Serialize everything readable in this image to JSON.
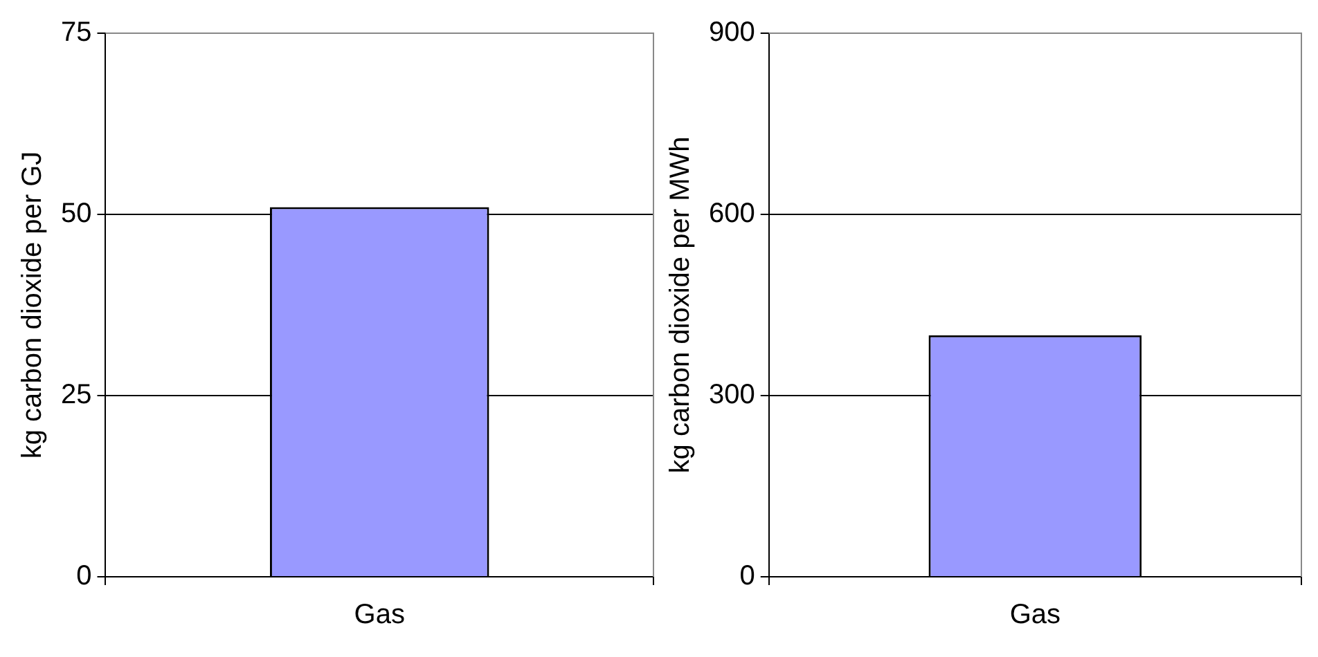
{
  "chart_data": [
    {
      "type": "bar",
      "categories": [
        "Gas"
      ],
      "values": [
        51
      ],
      "color": "#9999ff",
      "ylabel": "kg carbon dioxide per GJ",
      "ylim": [
        0,
        75
      ],
      "yticks": [
        0,
        25,
        50,
        75
      ],
      "grid": "y"
    },
    {
      "type": "bar",
      "categories": [
        "Gas"
      ],
      "values": [
        400
      ],
      "color": "#9999ff",
      "ylabel": "kg carbon dioxide per MWh",
      "ylim": [
        0,
        900
      ],
      "yticks": [
        0,
        300,
        600,
        900
      ],
      "grid": "y"
    }
  ]
}
